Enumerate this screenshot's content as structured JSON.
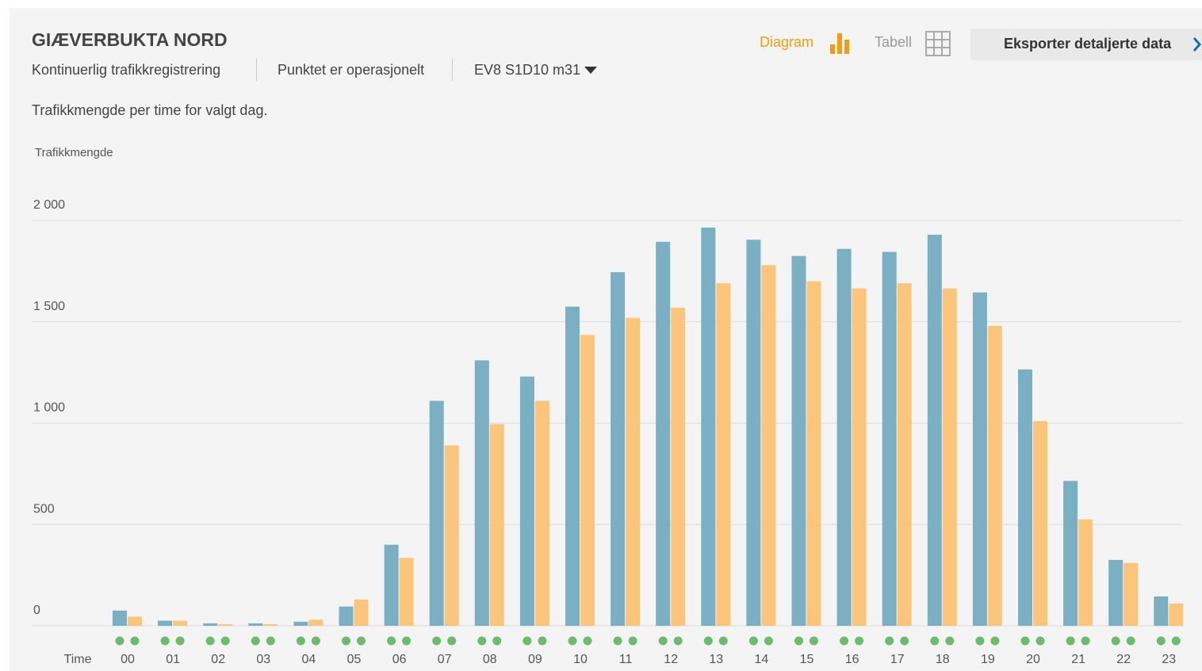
{
  "header": {
    "title": "GIÆVERBUKTA NORD",
    "info": [
      "Kontinuerlig trafikkregistrering",
      "Punktet er operasjonelt"
    ],
    "dropdown": "EV8 S1D10 m31",
    "view_diagram": "Diagram",
    "view_table": "Tabell",
    "export": "Eksporter detaljerte data"
  },
  "chart_data": {
    "type": "bar",
    "title": "Trafikkmengde per time for valgt dag.",
    "y_label": "Trafikkmengde",
    "x_label": "Time",
    "categories": [
      "00",
      "01",
      "02",
      "03",
      "04",
      "05",
      "06",
      "07",
      "08",
      "09",
      "10",
      "11",
      "12",
      "13",
      "14",
      "15",
      "16",
      "17",
      "18",
      "19",
      "20",
      "21",
      "22",
      "23"
    ],
    "series": [
      {
        "color": "#7aafc4",
        "values": [
          75,
          25,
          12,
          12,
          20,
          95,
          400,
          1110,
          1310,
          1230,
          1575,
          1745,
          1895,
          1965,
          1905,
          1825,
          1860,
          1845,
          1930,
          1645,
          1265,
          715,
          325,
          145
        ]
      },
      {
        "color": "#fbc57c",
        "values": [
          45,
          25,
          8,
          8,
          30,
          130,
          335,
          890,
          995,
          1110,
          1435,
          1520,
          1570,
          1690,
          1780,
          1700,
          1665,
          1690,
          1665,
          1480,
          1010,
          525,
          310,
          110
        ]
      }
    ],
    "ylim": [
      0,
      2000
    ],
    "yticks": [
      0,
      500,
      {
        "value": 1000,
        "label": "1 000"
      },
      {
        "value": 1500,
        "label": "1 500"
      },
      {
        "value": 2000,
        "label": "2 000"
      }
    ],
    "grid": true
  }
}
